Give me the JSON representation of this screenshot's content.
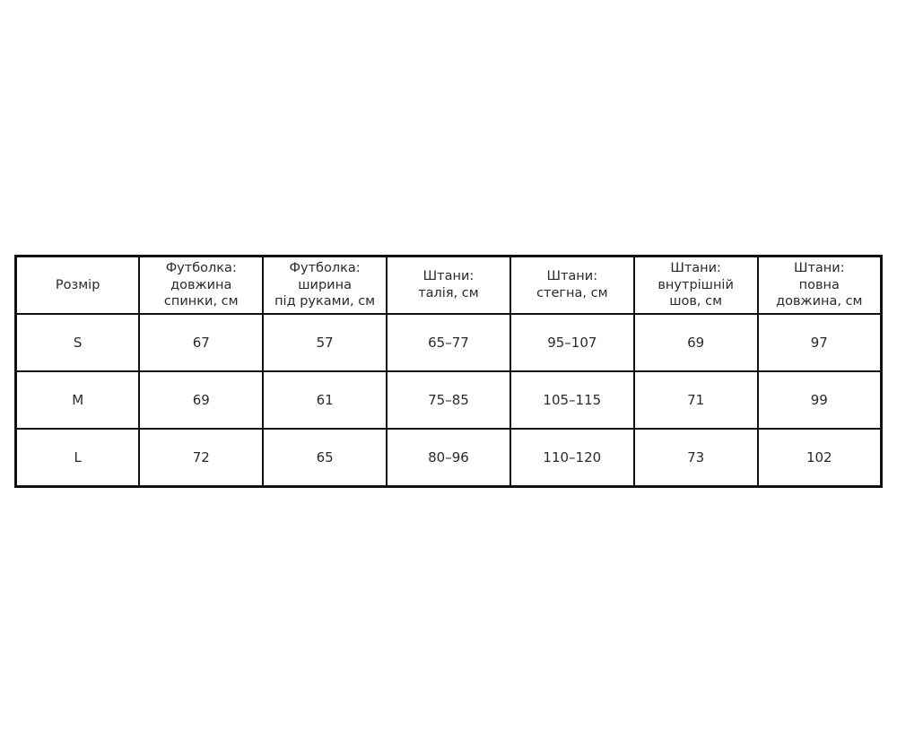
{
  "chart_data": {
    "type": "table",
    "title": "",
    "language": "uk",
    "columns": [
      "Розмір",
      "Футболка:\nдовжина\nспинки, см",
      "Футболка:\nширина\nпід руками, см",
      "Штани:\nталія, см",
      "Штани:\nстегна, см",
      "Штани:\nвнутрішній\nшов, см",
      "Штани:\nповна\nдовжина, см"
    ],
    "rows": [
      [
        "S",
        "67",
        "57",
        "65–77",
        "95–107",
        "69",
        "97"
      ],
      [
        "M",
        "69",
        "61",
        "75–85",
        "105–115",
        "71",
        "99"
      ],
      [
        "L",
        "72",
        "65",
        "80–96",
        "110–120",
        "73",
        "102"
      ]
    ],
    "layout_hints": {
      "border_color": "#111111",
      "text_color": "#2a2a2a",
      "background": "#ffffff",
      "columns_equal_width": true
    }
  }
}
